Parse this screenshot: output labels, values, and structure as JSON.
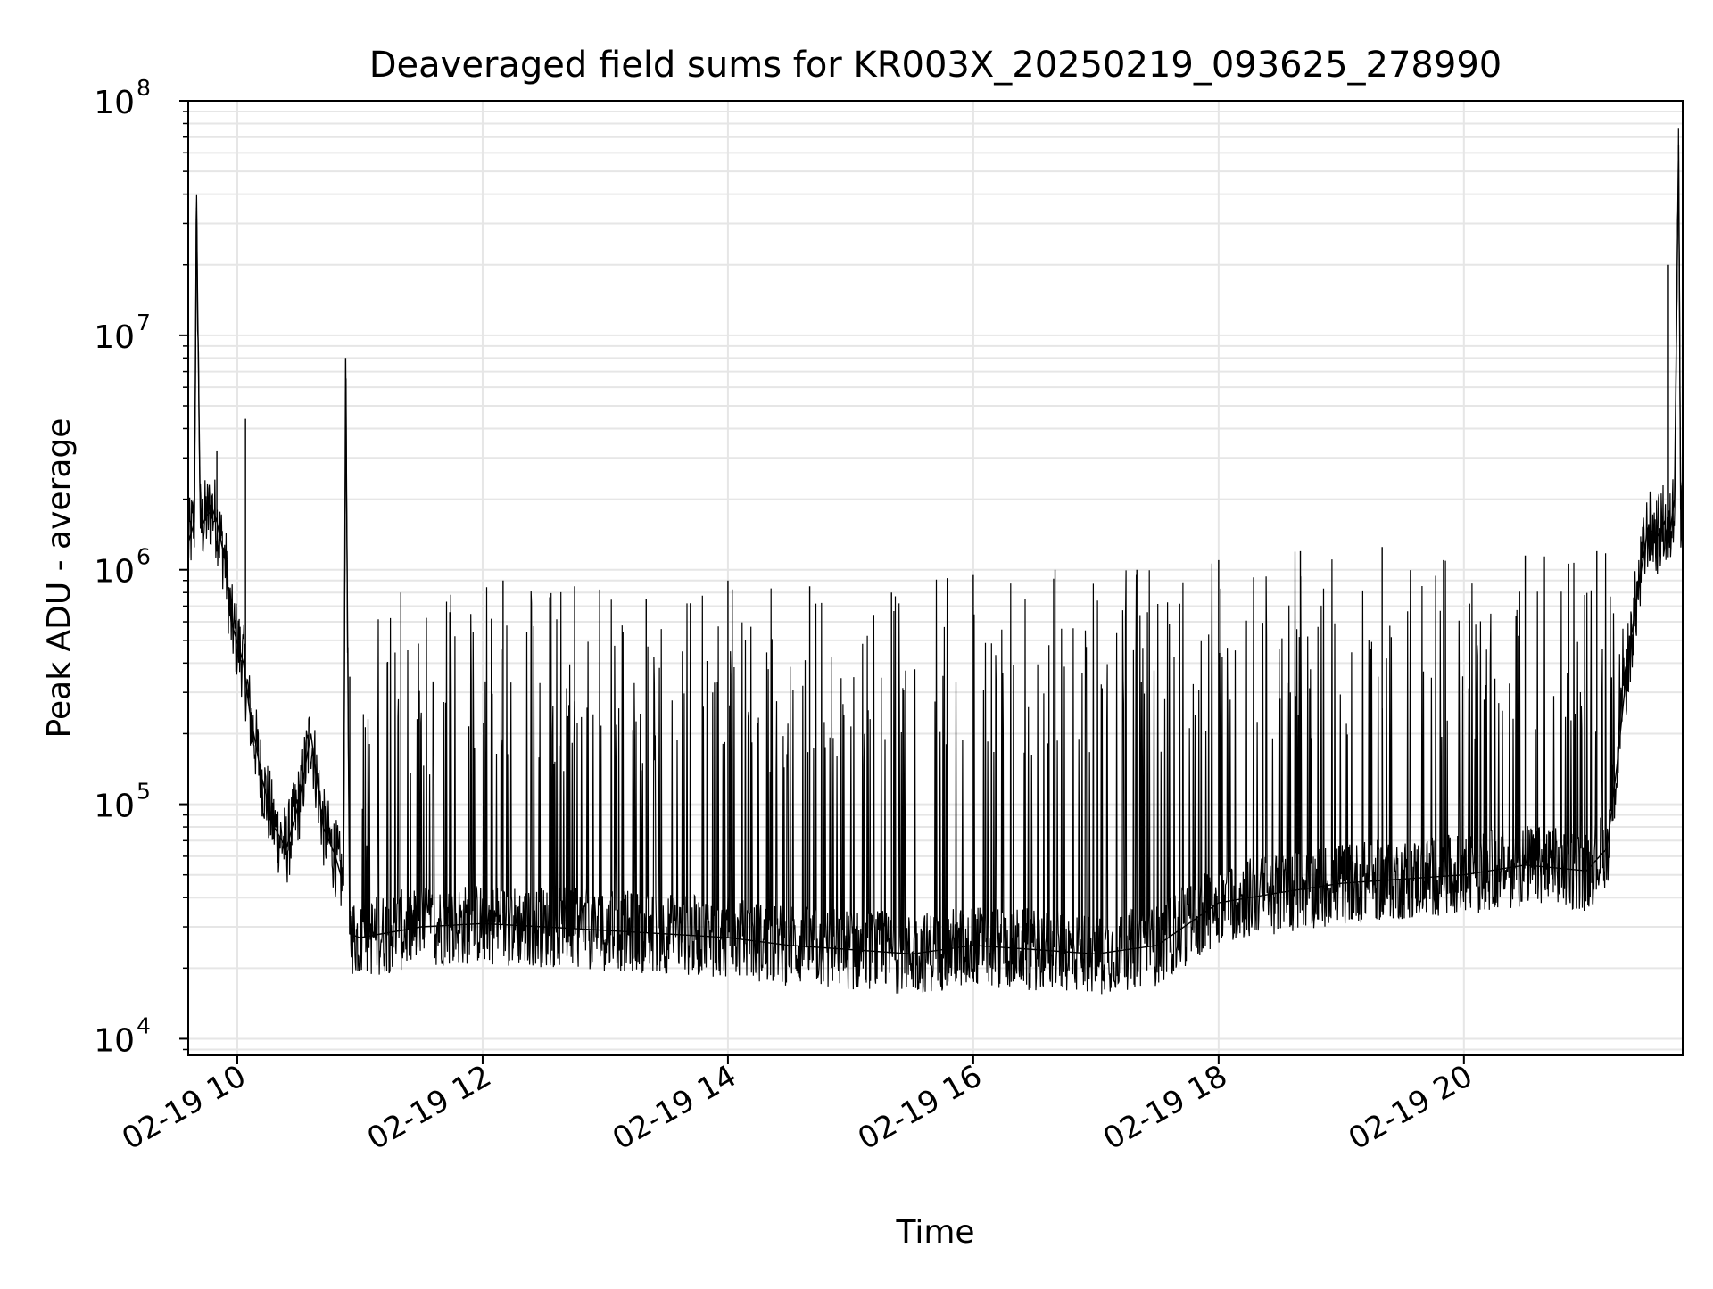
{
  "chart_data": {
    "type": "line",
    "title": "Deaveraged field sums for KR003X_20250219_093625_278990",
    "xlabel": "Time",
    "ylabel": "Peak ADU - average",
    "yscale": "log",
    "ylim": [
      8500,
      100000000
    ],
    "xlim": [
      "2025-02-19 09:36",
      "2025-02-19 21:47"
    ],
    "grid": true,
    "line_color": "#000000",
    "grid_color": "#e6e6e6",
    "x_ticks": [
      {
        "label": "02-19 10",
        "value": "2025-02-19 10:00"
      },
      {
        "label": "02-19 12",
        "value": "2025-02-19 12:00"
      },
      {
        "label": "02-19 14",
        "value": "2025-02-19 14:00"
      },
      {
        "label": "02-19 16",
        "value": "2025-02-19 16:00"
      },
      {
        "label": "02-19 18",
        "value": "2025-02-19 18:00"
      },
      {
        "label": "02-19 20",
        "value": "2025-02-19 20:00"
      }
    ],
    "y_ticks": [
      {
        "base": "10",
        "exp": "4",
        "value": 10000
      },
      {
        "base": "10",
        "exp": "5",
        "value": 100000
      },
      {
        "base": "10",
        "exp": "6",
        "value": 1000000
      },
      {
        "base": "10",
        "exp": "7",
        "value": 10000000
      },
      {
        "base": "10",
        "exp": "8",
        "value": 100000000
      }
    ],
    "series": [
      {
        "x": [
          "2025-02-19 09:36",
          "2025-02-19 09:39",
          "2025-02-19 09:40",
          "2025-02-19 09:42",
          "2025-02-19 09:45",
          "2025-02-19 09:48",
          "2025-02-19 09:50",
          "2025-02-19 09:54",
          "2025-02-19 09:57",
          "2025-02-19 10:03",
          "2025-02-19 10:06",
          "2025-02-19 10:12",
          "2025-02-19 10:18",
          "2025-02-19 10:24",
          "2025-02-19 10:30",
          "2025-02-19 10:36",
          "2025-02-19 10:42",
          "2025-02-19 10:48",
          "2025-02-19 10:52",
          "2025-02-19 10:53",
          "2025-02-19 10:55",
          "2025-02-19 11:00",
          "2025-02-19 11:30",
          "2025-02-19 12:00",
          "2025-02-19 12:30",
          "2025-02-19 13:00",
          "2025-02-19 13:30",
          "2025-02-19 14:00",
          "2025-02-19 14:30",
          "2025-02-19 15:00",
          "2025-02-19 15:30",
          "2025-02-19 16:00",
          "2025-02-19 16:30",
          "2025-02-19 17:00",
          "2025-02-19 17:30",
          "2025-02-19 18:00",
          "2025-02-19 18:30",
          "2025-02-19 19:00",
          "2025-02-19 19:30",
          "2025-02-19 20:00",
          "2025-02-19 20:30",
          "2025-02-19 21:00",
          "2025-02-19 21:10",
          "2025-02-19 21:15",
          "2025-02-19 21:20",
          "2025-02-19 21:25",
          "2025-02-19 21:30",
          "2025-02-19 21:35",
          "2025-02-19 21:38",
          "2025-02-19 21:40",
          "2025-02-19 21:43",
          "2025-02-19 21:45",
          "2025-02-19 21:46",
          "2025-02-19 21:47"
        ],
        "y": [
          1300000,
          1600000,
          35000000,
          1500000,
          1700000,
          1800000,
          1600000,
          1100000,
          600000,
          400000,
          250000,
          130000,
          80000,
          65000,
          100000,
          200000,
          80000,
          60000,
          45000,
          8000000,
          28000,
          27000,
          30000,
          31000,
          30000,
          29000,
          28000,
          27000,
          25000,
          24000,
          23000,
          25000,
          24000,
          23000,
          25000,
          38000,
          42000,
          46000,
          48000,
          50000,
          55000,
          52000,
          65000,
          150000,
          400000,
          800000,
          1500000,
          1400000,
          1600000,
          1300000,
          2000000,
          65000000,
          1800000,
          2500000
        ]
      }
    ],
    "spikes": [
      {
        "x": "2025-02-19 09:50",
        "y": 3200000
      },
      {
        "x": "2025-02-19 10:04",
        "y": 4400000
      },
      {
        "x": "2025-02-19 10:55",
        "y": 350000
      },
      {
        "x": "2025-02-19 11:20",
        "y": 800000
      },
      {
        "x": "2025-02-19 12:10",
        "y": 900000
      },
      {
        "x": "2025-02-19 12:45",
        "y": 850000
      },
      {
        "x": "2025-02-19 13:20",
        "y": 750000
      },
      {
        "x": "2025-02-19 14:00",
        "y": 900000
      },
      {
        "x": "2025-02-19 14:40",
        "y": 850000
      },
      {
        "x": "2025-02-19 15:20",
        "y": 800000
      },
      {
        "x": "2025-02-19 16:00",
        "y": 950000
      },
      {
        "x": "2025-02-19 16:40",
        "y": 1000000
      },
      {
        "x": "2025-02-19 17:20",
        "y": 1000000
      },
      {
        "x": "2025-02-19 18:00",
        "y": 1100000
      },
      {
        "x": "2025-02-19 18:40",
        "y": 1200000
      },
      {
        "x": "2025-02-19 19:20",
        "y": 1250000
      },
      {
        "x": "2025-02-19 19:50",
        "y": 1100000
      },
      {
        "x": "2025-02-19 20:30",
        "y": 1150000
      },
      {
        "x": "2025-02-19 21:05",
        "y": 1200000
      },
      {
        "x": "2025-02-19 21:40",
        "y": 20000000
      }
    ]
  }
}
